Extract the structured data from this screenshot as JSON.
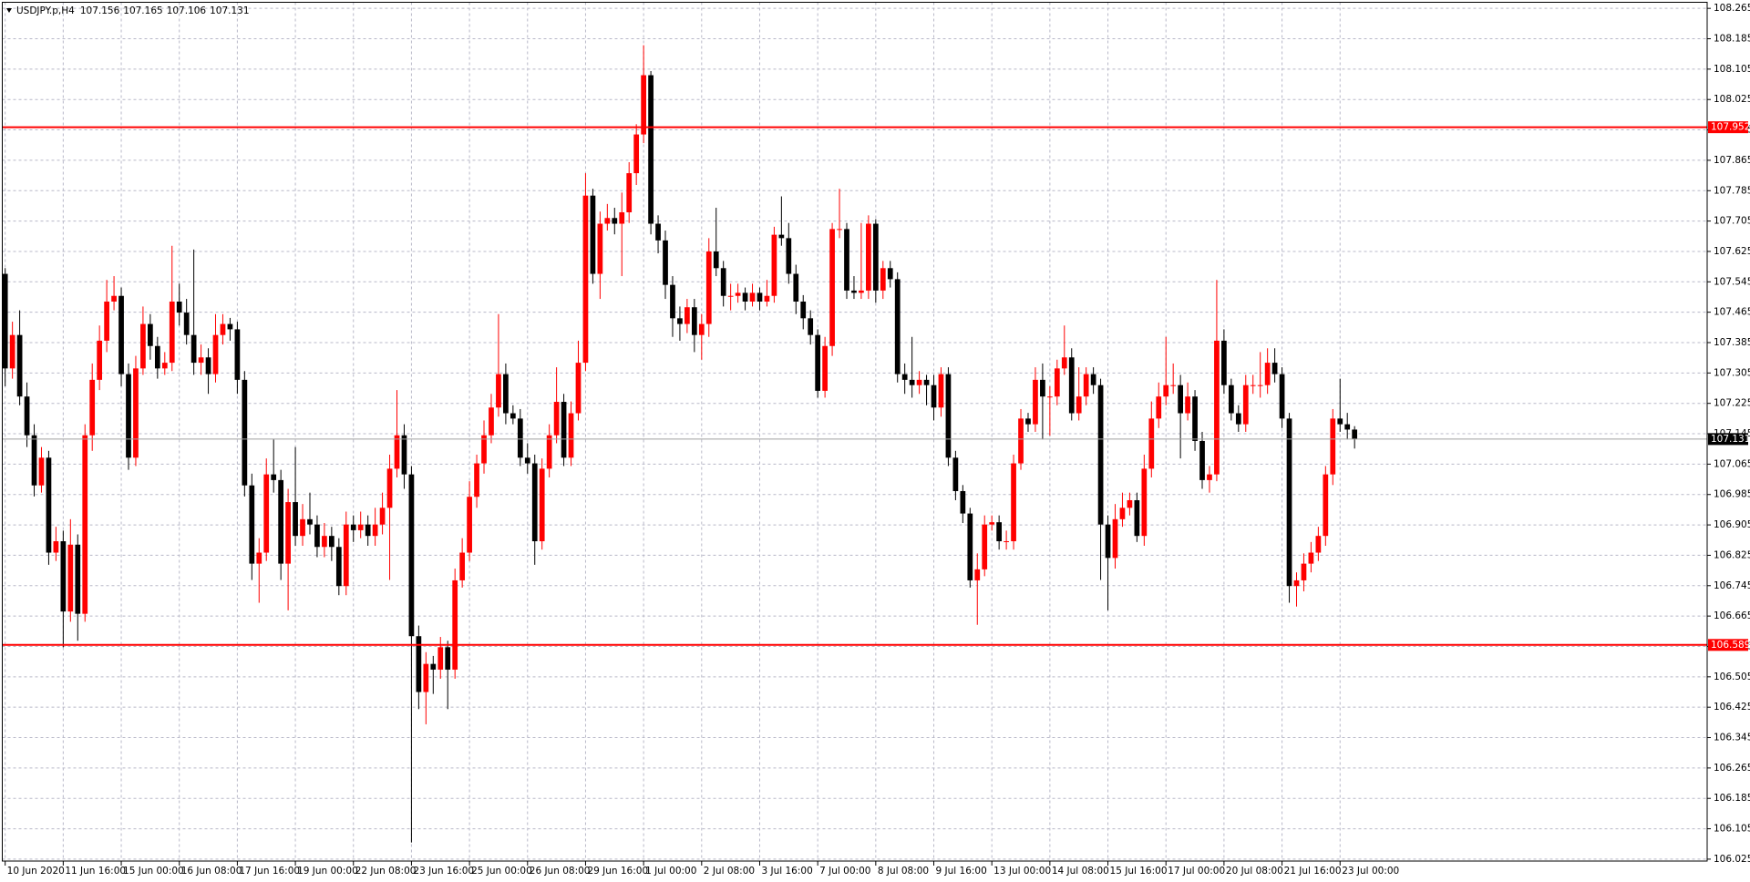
{
  "chart_data": {
    "type": "candlestick",
    "title": "USDJPY.p,H4",
    "ohlc": [
      [
        107.566,
        107.581,
        107.27,
        107.317
      ],
      [
        107.317,
        107.44,
        107.29,
        107.405
      ],
      [
        107.405,
        107.47,
        107.22,
        107.243
      ],
      [
        107.243,
        107.28,
        107.11,
        107.141
      ],
      [
        107.141,
        107.17,
        106.98,
        107.009
      ],
      [
        107.009,
        107.11,
        106.99,
        107.082
      ],
      [
        107.082,
        107.1,
        106.8,
        106.832
      ],
      [
        106.832,
        106.9,
        106.81,
        106.862
      ],
      [
        106.862,
        106.89,
        106.583,
        106.677
      ],
      [
        106.677,
        106.92,
        106.65,
        106.853
      ],
      [
        106.853,
        106.88,
        106.6,
        106.671
      ],
      [
        106.671,
        107.17,
        106.65,
        107.141
      ],
      [
        107.141,
        107.33,
        107.1,
        107.287
      ],
      [
        107.287,
        107.43,
        107.26,
        107.39
      ],
      [
        107.39,
        107.55,
        107.36,
        107.493
      ],
      [
        107.493,
        107.56,
        107.47,
        107.508
      ],
      [
        107.508,
        107.53,
        107.27,
        107.302
      ],
      [
        107.302,
        107.33,
        107.05,
        107.082
      ],
      [
        107.082,
        107.35,
        107.06,
        107.317
      ],
      [
        107.317,
        107.48,
        107.3,
        107.434
      ],
      [
        107.434,
        107.46,
        107.34,
        107.376
      ],
      [
        107.376,
        107.4,
        107.29,
        107.317
      ],
      [
        107.317,
        107.36,
        107.3,
        107.332
      ],
      [
        107.332,
        107.64,
        107.31,
        107.493
      ],
      [
        107.493,
        107.54,
        107.43,
        107.464
      ],
      [
        107.464,
        107.5,
        107.38,
        107.405
      ],
      [
        107.405,
        107.63,
        107.3,
        107.332
      ],
      [
        107.332,
        107.38,
        107.3,
        107.346
      ],
      [
        107.346,
        107.37,
        107.25,
        107.302
      ],
      [
        107.302,
        107.46,
        107.28,
        107.405
      ],
      [
        107.405,
        107.46,
        107.38,
        107.434
      ],
      [
        107.434,
        107.45,
        107.39,
        107.42
      ],
      [
        107.42,
        107.44,
        107.25,
        107.287
      ],
      [
        107.287,
        107.31,
        106.98,
        107.009
      ],
      [
        107.009,
        107.04,
        106.76,
        106.803
      ],
      [
        106.803,
        106.87,
        106.7,
        106.832
      ],
      [
        106.832,
        107.08,
        106.81,
        107.038
      ],
      [
        107.038,
        107.13,
        106.99,
        107.023
      ],
      [
        107.023,
        107.05,
        106.76,
        106.803
      ],
      [
        106.803,
        107.0,
        106.68,
        106.965
      ],
      [
        106.965,
        107.11,
        106.85,
        106.876
      ],
      [
        106.876,
        106.96,
        106.85,
        106.92
      ],
      [
        106.92,
        106.99,
        106.88,
        106.906
      ],
      [
        106.906,
        106.93,
        106.82,
        106.847
      ],
      [
        106.847,
        106.91,
        106.82,
        106.876
      ],
      [
        106.876,
        106.9,
        106.81,
        106.847
      ],
      [
        106.847,
        106.87,
        106.72,
        106.744
      ],
      [
        106.744,
        106.94,
        106.72,
        106.906
      ],
      [
        106.906,
        106.93,
        106.86,
        106.891
      ],
      [
        106.891,
        106.94,
        106.87,
        106.906
      ],
      [
        106.906,
        106.93,
        106.85,
        106.876
      ],
      [
        106.876,
        106.95,
        106.85,
        106.906
      ],
      [
        106.906,
        106.99,
        106.88,
        106.95
      ],
      [
        106.95,
        107.09,
        106.76,
        107.053
      ],
      [
        107.053,
        107.26,
        107.03,
        107.141
      ],
      [
        107.141,
        107.17,
        107.0,
        107.038
      ],
      [
        107.038,
        107.06,
        106.069,
        106.612
      ],
      [
        106.612,
        106.64,
        106.42,
        106.465
      ],
      [
        106.465,
        106.57,
        106.38,
        106.539
      ],
      [
        106.539,
        106.56,
        106.46,
        106.524
      ],
      [
        106.524,
        106.61,
        106.5,
        106.583
      ],
      [
        106.583,
        106.6,
        106.42,
        106.524
      ],
      [
        106.524,
        106.79,
        106.5,
        106.759
      ],
      [
        106.759,
        106.87,
        106.74,
        106.832
      ],
      [
        106.832,
        107.02,
        106.81,
        106.979
      ],
      [
        106.979,
        107.09,
        106.95,
        107.067
      ],
      [
        107.067,
        107.18,
        107.04,
        107.141
      ],
      [
        107.141,
        107.25,
        107.12,
        107.214
      ],
      [
        107.214,
        107.46,
        107.19,
        107.302
      ],
      [
        107.302,
        107.33,
        107.17,
        107.199
      ],
      [
        107.199,
        107.22,
        107.17,
        107.185
      ],
      [
        107.185,
        107.21,
        107.06,
        107.082
      ],
      [
        107.082,
        107.12,
        107.04,
        107.067
      ],
      [
        107.067,
        107.09,
        106.8,
        106.862
      ],
      [
        106.862,
        107.08,
        106.84,
        107.053
      ],
      [
        107.053,
        107.17,
        107.03,
        107.141
      ],
      [
        107.141,
        107.32,
        107.12,
        107.229
      ],
      [
        107.229,
        107.25,
        107.06,
        107.082
      ],
      [
        107.082,
        107.23,
        107.06,
        107.199
      ],
      [
        107.199,
        107.39,
        107.18,
        107.332
      ],
      [
        107.332,
        107.831,
        107.31,
        107.772
      ],
      [
        107.772,
        107.79,
        107.54,
        107.566
      ],
      [
        107.566,
        107.73,
        107.5,
        107.698
      ],
      [
        107.698,
        107.75,
        107.68,
        107.713
      ],
      [
        107.713,
        107.74,
        107.67,
        107.698
      ],
      [
        107.698,
        107.78,
        107.56,
        107.728
      ],
      [
        107.728,
        107.86,
        107.7,
        107.831
      ],
      [
        107.831,
        107.96,
        107.8,
        107.933
      ],
      [
        107.933,
        108.168,
        107.91,
        108.089
      ],
      [
        108.089,
        108.1,
        107.67,
        107.698
      ],
      [
        107.698,
        107.72,
        107.62,
        107.654
      ],
      [
        107.654,
        107.68,
        107.5,
        107.537
      ],
      [
        107.537,
        107.56,
        107.4,
        107.449
      ],
      [
        107.449,
        107.48,
        107.39,
        107.434
      ],
      [
        107.434,
        107.5,
        107.41,
        107.478
      ],
      [
        107.478,
        107.5,
        107.36,
        107.405
      ],
      [
        107.405,
        107.46,
        107.34,
        107.434
      ],
      [
        107.434,
        107.66,
        107.4,
        107.625
      ],
      [
        107.625,
        107.74,
        107.56,
        107.581
      ],
      [
        107.581,
        107.6,
        107.48,
        107.508
      ],
      [
        107.508,
        107.54,
        107.47,
        107.508
      ],
      [
        107.508,
        107.54,
        107.49,
        107.516
      ],
      [
        107.516,
        107.53,
        107.47,
        107.493
      ],
      [
        107.493,
        107.54,
        107.48,
        107.516
      ],
      [
        107.516,
        107.53,
        107.47,
        107.493
      ],
      [
        107.493,
        107.55,
        107.48,
        107.508
      ],
      [
        107.508,
        107.69,
        107.49,
        107.669
      ],
      [
        107.669,
        107.77,
        107.64,
        107.66
      ],
      [
        107.66,
        107.7,
        107.54,
        107.566
      ],
      [
        107.566,
        107.59,
        107.46,
        107.493
      ],
      [
        107.493,
        107.51,
        107.42,
        107.449
      ],
      [
        107.449,
        107.47,
        107.38,
        107.405
      ],
      [
        107.405,
        107.42,
        107.24,
        107.258
      ],
      [
        107.258,
        107.4,
        107.24,
        107.376
      ],
      [
        107.376,
        107.7,
        107.35,
        107.684
      ],
      [
        107.684,
        107.79,
        107.66,
        107.684
      ],
      [
        107.684,
        107.7,
        107.5,
        107.522
      ],
      [
        107.522,
        107.56,
        107.5,
        107.516
      ],
      [
        107.516,
        107.7,
        107.5,
        107.522
      ],
      [
        107.522,
        107.72,
        107.5,
        107.698
      ],
      [
        107.698,
        107.71,
        107.49,
        107.522
      ],
      [
        107.522,
        107.6,
        107.5,
        107.581
      ],
      [
        107.581,
        107.6,
        107.53,
        107.552
      ],
      [
        107.552,
        107.57,
        107.28,
        107.302
      ],
      [
        107.302,
        107.33,
        107.25,
        107.287
      ],
      [
        107.287,
        107.4,
        107.24,
        107.273
      ],
      [
        107.273,
        107.31,
        107.25,
        107.287
      ],
      [
        107.287,
        107.3,
        107.22,
        107.273
      ],
      [
        107.273,
        107.3,
        107.18,
        107.214
      ],
      [
        107.214,
        107.32,
        107.19,
        107.302
      ],
      [
        107.302,
        107.32,
        107.06,
        107.082
      ],
      [
        107.082,
        107.1,
        106.97,
        106.994
      ],
      [
        106.994,
        107.01,
        106.91,
        106.935
      ],
      [
        106.935,
        106.95,
        106.74,
        106.759
      ],
      [
        106.759,
        106.83,
        106.642,
        106.788
      ],
      [
        106.788,
        106.93,
        106.77,
        106.906
      ],
      [
        106.906,
        106.93,
        106.89,
        106.912
      ],
      [
        106.912,
        106.93,
        106.84,
        106.862
      ],
      [
        106.862,
        106.89,
        106.84,
        106.862
      ],
      [
        106.862,
        107.09,
        106.84,
        107.067
      ],
      [
        107.067,
        107.21,
        107.05,
        107.185
      ],
      [
        107.185,
        107.2,
        107.15,
        107.17
      ],
      [
        107.17,
        107.32,
        107.15,
        107.287
      ],
      [
        107.287,
        107.33,
        107.13,
        107.243
      ],
      [
        107.243,
        107.27,
        107.14,
        107.243
      ],
      [
        107.243,
        107.34,
        107.22,
        107.317
      ],
      [
        107.317,
        107.43,
        107.3,
        107.346
      ],
      [
        107.346,
        107.37,
        107.18,
        107.199
      ],
      [
        107.199,
        107.32,
        107.18,
        107.243
      ],
      [
        107.243,
        107.32,
        107.22,
        107.302
      ],
      [
        107.302,
        107.32,
        107.25,
        107.273
      ],
      [
        107.273,
        107.29,
        106.76,
        106.906
      ],
      [
        106.906,
        106.93,
        106.68,
        106.818
      ],
      [
        106.818,
        106.96,
        106.79,
        106.92
      ],
      [
        106.92,
        106.99,
        106.9,
        106.95
      ],
      [
        106.95,
        106.99,
        106.93,
        106.97
      ],
      [
        106.97,
        106.99,
        106.86,
        106.876
      ],
      [
        106.876,
        107.09,
        106.85,
        107.053
      ],
      [
        107.053,
        107.23,
        107.03,
        107.185
      ],
      [
        107.185,
        107.28,
        107.16,
        107.243
      ],
      [
        107.243,
        107.4,
        107.22,
        107.273
      ],
      [
        107.273,
        107.33,
        107.25,
        107.273
      ],
      [
        107.273,
        107.3,
        107.08,
        107.199
      ],
      [
        107.199,
        107.28,
        107.18,
        107.243
      ],
      [
        107.243,
        107.26,
        107.1,
        107.126
      ],
      [
        107.126,
        107.15,
        107.0,
        107.023
      ],
      [
        107.023,
        107.06,
        106.99,
        107.038
      ],
      [
        107.038,
        107.55,
        107.02,
        107.39
      ],
      [
        107.39,
        107.42,
        107.25,
        107.273
      ],
      [
        107.273,
        107.29,
        107.18,
        107.199
      ],
      [
        107.199,
        107.22,
        107.15,
        107.17
      ],
      [
        107.17,
        107.3,
        107.15,
        107.273
      ],
      [
        107.273,
        107.3,
        107.25,
        107.273
      ],
      [
        107.273,
        107.36,
        107.24,
        107.273
      ],
      [
        107.273,
        107.37,
        107.25,
        107.332
      ],
      [
        107.332,
        107.37,
        107.28,
        107.302
      ],
      [
        107.302,
        107.32,
        107.16,
        107.185
      ],
      [
        107.185,
        107.2,
        106.7,
        106.744
      ],
      [
        106.744,
        106.78,
        106.69,
        106.759
      ],
      [
        106.759,
        106.83,
        106.73,
        106.803
      ],
      [
        106.803,
        106.86,
        106.78,
        106.832
      ],
      [
        106.832,
        106.9,
        106.81,
        106.876
      ],
      [
        106.876,
        107.06,
        106.85,
        107.038
      ],
      [
        107.038,
        107.21,
        107.01,
        107.185
      ],
      [
        107.185,
        107.29,
        107.15,
        107.17
      ],
      [
        107.17,
        107.2,
        107.13,
        107.156
      ],
      [
        107.156,
        107.165,
        107.106,
        107.131
      ]
    ],
    "up_color": "#ff0000",
    "down_color": "#000000",
    "xlim": [
      -0.4,
      234.6
    ],
    "xticks": [
      {
        "value": 0,
        "label": "10 Jun 2020"
      },
      {
        "value": 8,
        "label": "11 Jun 16:00"
      },
      {
        "value": 16,
        "label": "15 Jun 00:00"
      },
      {
        "value": 24,
        "label": "16 Jun 08:00"
      },
      {
        "value": 32,
        "label": "17 Jun 16:00"
      },
      {
        "value": 40,
        "label": "19 Jun 00:00"
      },
      {
        "value": 48,
        "label": "22 Jun 08:00"
      },
      {
        "value": 56,
        "label": "23 Jun 16:00"
      },
      {
        "value": 64,
        "label": "25 Jun 00:00"
      },
      {
        "value": 72,
        "label": "26 Jun 08:00"
      },
      {
        "value": 80,
        "label": "29 Jun 16:00"
      },
      {
        "value": 88,
        "label": "1 Jul 00:00"
      },
      {
        "value": 96,
        "label": "2 Jul 08:00"
      },
      {
        "value": 104,
        "label": "3 Jul 16:00"
      },
      {
        "value": 112,
        "label": "7 Jul 00:00"
      },
      {
        "value": 120,
        "label": "8 Jul 08:00"
      },
      {
        "value": 128,
        "label": "9 Jul 16:00"
      },
      {
        "value": 136,
        "label": "13 Jul 00:00"
      },
      {
        "value": 144,
        "label": "14 Jul 08:00"
      },
      {
        "value": 152,
        "label": "15 Jul 16:00"
      },
      {
        "value": 160,
        "label": "17 Jul 00:00"
      },
      {
        "value": 168,
        "label": "20 Jul 08:00"
      },
      {
        "value": 176,
        "label": "21 Jul 16:00"
      },
      {
        "value": 184,
        "label": "23 Jul 00:00"
      }
    ],
    "ylim": [
      106.02,
      108.281
    ],
    "yticks": [
      108.265,
      108.185,
      108.105,
      108.025,
      107.945,
      107.865,
      107.785,
      107.705,
      107.625,
      107.545,
      107.465,
      107.385,
      107.305,
      107.225,
      107.145,
      107.065,
      106.985,
      106.905,
      106.825,
      106.745,
      106.665,
      106.585,
      106.505,
      106.425,
      106.345,
      106.265,
      106.185,
      106.105,
      106.025
    ],
    "grid": true,
    "hlines": [
      {
        "value": 107.952,
        "color": "#ff0000"
      },
      {
        "value": 106.589,
        "color": "#ff0000"
      }
    ],
    "price_line_color": "#a0a0a0"
  }
}
